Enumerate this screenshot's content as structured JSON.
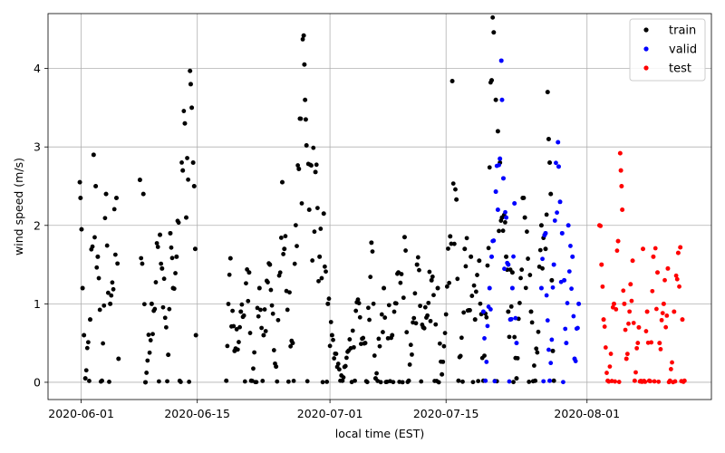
{
  "chart_data": {
    "type": "scatter",
    "xlabel": "local time (EST)",
    "ylabel": "wind speed (m/s)",
    "xlim": [
      "2020-05-28",
      "2020-08-16"
    ],
    "ylim": [
      -0.22,
      4.7
    ],
    "x_ticks": [
      "2020-06-01",
      "2020-06-15",
      "2020-07-01",
      "2020-07-15",
      "2020-08-01"
    ],
    "y_ticks": [
      0,
      1,
      2,
      3,
      4
    ],
    "grid": true,
    "legend_position": "top-right",
    "colors": {
      "train": "#000000",
      "valid": "#0000ff",
      "test": "#ff0000",
      "grid": "#b0b0b0"
    },
    "series": [
      {
        "name": "train",
        "color": "#000000",
        "time_range": [
          "2020-06-01",
          "2020-07-19"
        ],
        "points": [
          [
            "2020-05-31 20:00",
            2.55
          ],
          [
            "2020-05-31 22:00",
            2.35
          ],
          [
            "2020-06-01 01:00",
            1.95
          ],
          [
            "2020-06-01 04:00",
            1.2
          ],
          [
            "2020-06-01 08:00",
            0.6
          ],
          [
            "2020-06-01 12:00",
            0.05
          ],
          [
            "2020-06-02 02:00",
            0.8
          ],
          [
            "2020-06-02 12:00",
            2.9
          ],
          [
            "2020-06-02 18:00",
            2.5
          ],
          [
            "2020-06-03 00:00",
            1.6
          ],
          [
            "2020-06-03 12:00",
            0.02
          ],
          [
            "2020-06-04 00:00",
            2.4
          ],
          [
            "2020-06-04 12:00",
            1.0
          ],
          [
            "2020-06-05 06:00",
            2.35
          ],
          [
            "2020-06-05 12:00",
            0.3
          ],
          [
            "2020-06-08 02:00",
            2.58
          ],
          [
            "2020-06-08 12:00",
            2.4
          ],
          [
            "2020-06-08 18:00",
            0.0
          ],
          [
            "2020-06-09 12:00",
            1.0
          ],
          [
            "2020-06-10 12:00",
            1.88
          ],
          [
            "2020-06-10 18:00",
            1.45
          ],
          [
            "2020-06-11 12:00",
            0.35
          ],
          [
            "2020-06-11 18:00",
            1.9
          ],
          [
            "2020-06-12 02:00",
            1.2
          ],
          [
            "2020-06-12 12:00",
            1.6
          ],
          [
            "2020-06-13 06:00",
            2.7
          ],
          [
            "2020-06-13 12:00",
            3.3
          ],
          [
            "2020-06-13 16:00",
            2.1
          ],
          [
            "2020-06-14 03:00",
            3.97
          ],
          [
            "2020-06-14 05:00",
            3.8
          ],
          [
            "2020-06-14 08:00",
            3.5
          ],
          [
            "2020-06-14 12:00",
            2.8
          ],
          [
            "2020-06-14 15:00",
            2.5
          ],
          [
            "2020-06-14 18:00",
            1.7
          ],
          [
            "2020-06-14 20:00",
            0.6
          ],
          [
            "2020-06-18 12:00",
            0.02
          ],
          [
            "2020-06-19 00:00",
            1.58
          ],
          [
            "2020-06-19 12:00",
            0.4
          ],
          [
            "2020-06-20 06:00",
            0.9
          ],
          [
            "2020-06-21 06:00",
            1.4
          ],
          [
            "2020-06-21 12:00",
            0.02
          ],
          [
            "2020-06-22 12:00",
            1.2
          ],
          [
            "2020-06-23 00:00",
            0.6
          ],
          [
            "2020-06-23 18:00",
            1.5
          ],
          [
            "2020-06-24 12:00",
            0.2
          ],
          [
            "2020-06-25 06:00",
            2.55
          ],
          [
            "2020-06-25 12:00",
            1.7
          ],
          [
            "2020-06-26 12:00",
            0.5
          ],
          [
            "2020-06-27 06:00",
            2.72
          ],
          [
            "2020-06-27 20:00",
            4.42
          ],
          [
            "2020-06-27 22:00",
            4.05
          ],
          [
            "2020-06-28 00:00",
            3.6
          ],
          [
            "2020-06-28 02:00",
            3.35
          ],
          [
            "2020-06-28 04:00",
            3.02
          ],
          [
            "2020-06-28 12:00",
            2.2
          ],
          [
            "2020-06-29 06:00",
            2.68
          ],
          [
            "2020-06-29 18:00",
            1.6
          ],
          [
            "2020-06-30 06:00",
            2.15
          ],
          [
            "2020-06-30 18:00",
            1.0
          ],
          [
            "2020-07-01 06:00",
            0.6
          ],
          [
            "2020-07-02 12:00",
            0.02
          ],
          [
            "2020-07-04 06:00",
            1.02
          ],
          [
            "2020-07-05 06:00",
            0.5
          ],
          [
            "2020-07-06 00:00",
            1.78
          ],
          [
            "2020-07-06 12:00",
            0.05
          ],
          [
            "2020-07-07 12:00",
            1.2
          ],
          [
            "2020-07-08 12:00",
            0.6
          ],
          [
            "2020-07-09 06:00",
            1.4
          ],
          [
            "2020-07-10 00:00",
            1.85
          ],
          [
            "2020-07-10 12:00",
            0.02
          ],
          [
            "2020-07-11 12:00",
            1.5
          ],
          [
            "2020-07-12 06:00",
            0.7
          ],
          [
            "2020-07-13 06:00",
            1.3
          ],
          [
            "2020-07-14 00:00",
            1.2
          ],
          [
            "2020-07-14 12:00",
            0.1
          ],
          [
            "2020-07-15 12:00",
            1.86
          ],
          [
            "2020-07-15 18:00",
            3.84
          ],
          [
            "2020-07-16 06:00",
            2.33
          ],
          [
            "2020-07-16 12:00",
            0.02
          ],
          [
            "2020-07-17 06:00",
            1.7
          ],
          [
            "2020-07-18 00:00",
            1.6
          ],
          [
            "2020-07-18 12:00",
            0.8
          ],
          [
            "2020-07-19 00:00",
            1.55
          ],
          [
            "2020-07-19 12:00",
            0.02
          ],
          [
            "2020-07-20 12:00",
            3.85
          ],
          [
            "2020-07-20 18:00",
            4.46
          ],
          [
            "2020-07-21 00:00",
            3.6
          ],
          [
            "2020-07-21 06:00",
            3.2
          ],
          [
            "2020-07-21 12:00",
            2.8
          ],
          [
            "2020-07-21 18:00",
            2.1
          ],
          [
            "2020-07-22 06:00",
            1.6
          ],
          [
            "2020-07-22 12:00",
            0.9
          ],
          [
            "2020-07-23 00:00",
            1.4
          ],
          [
            "2020-07-23 12:00",
            0.05
          ],
          [
            "2020-07-24 06:00",
            2.35
          ],
          [
            "2020-07-24 12:00",
            2.1
          ],
          [
            "2020-07-25 06:00",
            0.9
          ],
          [
            "2020-07-25 18:00",
            0.02
          ],
          [
            "2020-07-26 12:00",
            2.0
          ],
          [
            "2020-07-27 00:00",
            1.7
          ],
          [
            "2020-07-27 06:00",
            3.7
          ],
          [
            "2020-07-27 09:00",
            3.1
          ],
          [
            "2020-07-27 12:00",
            2.8
          ],
          [
            "2020-07-27 15:00",
            2.4
          ],
          [
            "2020-07-27 18:00",
            1.3
          ],
          [
            "2020-07-27 21:00",
            0.4
          ],
          [
            "2020-07-28 00:00",
            0.02
          ]
        ]
      },
      {
        "name": "valid",
        "color": "#0000ff",
        "time_range": [
          "2020-07-19",
          "2020-07-29"
        ],
        "points": [
          [
            "2020-07-19 12:00",
            0.9
          ],
          [
            "2020-07-19 18:00",
            0.02
          ],
          [
            "2020-07-20 06:00",
            1.2
          ],
          [
            "2020-07-20 12:00",
            1.6
          ],
          [
            "2020-07-21 00:00",
            2.43
          ],
          [
            "2020-07-21 06:00",
            2.2
          ],
          [
            "2020-07-21 12:00",
            2.85
          ],
          [
            "2020-07-21 16:00",
            4.1
          ],
          [
            "2020-07-21 18:00",
            3.6
          ],
          [
            "2020-07-21 22:00",
            2.6
          ],
          [
            "2020-07-22 06:00",
            2.1
          ],
          [
            "2020-07-22 12:00",
            1.5
          ],
          [
            "2020-07-22 18:00",
            0.8
          ],
          [
            "2020-07-23 00:00",
            1.2
          ],
          [
            "2020-07-23 06:00",
            2.28
          ],
          [
            "2020-07-23 12:00",
            0.5
          ],
          [
            "2020-07-26 12:00",
            1.2
          ],
          [
            "2020-07-27 00:00",
            1.9
          ],
          [
            "2020-07-27 12:00",
            0.02
          ],
          [
            "2020-07-28 00:00",
            1.5
          ],
          [
            "2020-07-28 12:00",
            3.06
          ],
          [
            "2020-07-28 14:00",
            2.75
          ],
          [
            "2020-07-28 18:00",
            2.3
          ],
          [
            "2020-07-29 00:00",
            1.9
          ],
          [
            "2020-07-29 06:00",
            1.3
          ],
          [
            "2020-07-29 12:00",
            0.5
          ],
          [
            "2020-07-29 18:00",
            2.0
          ],
          [
            "2020-07-30 06:00",
            1.6
          ],
          [
            "2020-07-30 12:00",
            0.3
          ],
          [
            "2020-07-31 00:00",
            1.0
          ]
        ]
      },
      {
        "name": "test",
        "color": "#ff0000",
        "time_range": [
          "2020-08-02",
          "2020-08-12"
        ],
        "points": [
          [
            "2020-08-02 12:00",
            2.0
          ],
          [
            "2020-08-02 18:00",
            1.5
          ],
          [
            "2020-08-03 00:00",
            0.8
          ],
          [
            "2020-08-03 12:00",
            0.02
          ],
          [
            "2020-08-04 06:00",
            1.0
          ],
          [
            "2020-08-04 18:00",
            1.8
          ],
          [
            "2020-08-05 00:00",
            2.92
          ],
          [
            "2020-08-05 02:00",
            2.7
          ],
          [
            "2020-08-05 04:00",
            2.5
          ],
          [
            "2020-08-05 06:00",
            2.2
          ],
          [
            "2020-08-05 12:00",
            1.0
          ],
          [
            "2020-08-05 18:00",
            0.3
          ],
          [
            "2020-08-06 06:00",
            1.25
          ],
          [
            "2020-08-06 12:00",
            1.55
          ],
          [
            "2020-08-06 18:00",
            0.02
          ],
          [
            "2020-08-07 06:00",
            0.7
          ],
          [
            "2020-08-07 18:00",
            1.7
          ],
          [
            "2020-08-08 06:00",
            0.9
          ],
          [
            "2020-08-08 12:00",
            0.02
          ],
          [
            "2020-08-09 00:00",
            1.6
          ],
          [
            "2020-08-09 12:00",
            1.4
          ],
          [
            "2020-08-09 18:00",
            0.5
          ],
          [
            "2020-08-10 06:00",
            1.0
          ],
          [
            "2020-08-10 18:00",
            1.45
          ],
          [
            "2020-08-11 00:00",
            0.02
          ],
          [
            "2020-08-11 12:00",
            0.9
          ],
          [
            "2020-08-12 00:00",
            1.65
          ],
          [
            "2020-08-12 06:00",
            1.72
          ],
          [
            "2020-08-12 12:00",
            0.8
          ],
          [
            "2020-08-12 18:00",
            0.02
          ]
        ]
      }
    ]
  }
}
